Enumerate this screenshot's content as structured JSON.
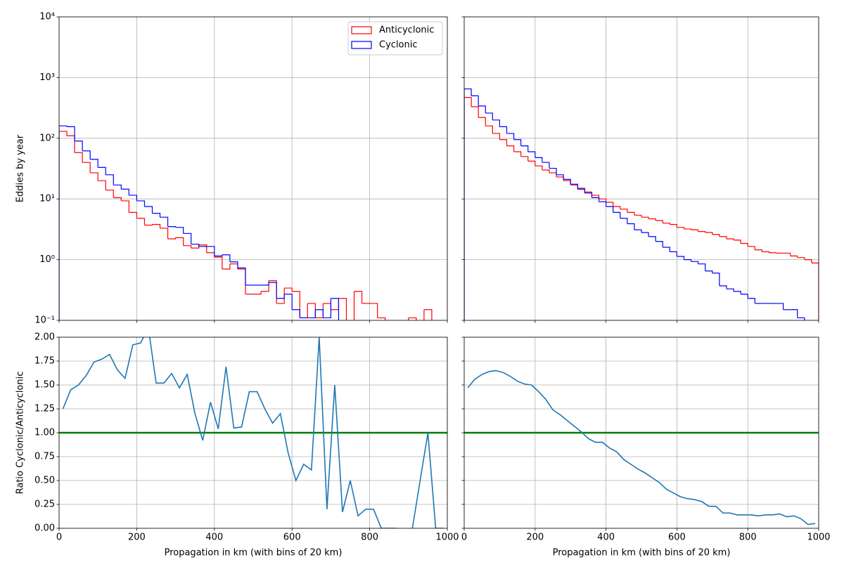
{
  "chart_data": [
    {
      "type": "histogram",
      "yscale": "log",
      "grid": true,
      "xtick_labels": false,
      "ytick_labels": true,
      "ylabel": "Eddies by year",
      "legend": "upper right",
      "bins": [
        0,
        20,
        40,
        60,
        80,
        100,
        120,
        140,
        160,
        180,
        200,
        220,
        240,
        260,
        280,
        300,
        320,
        340,
        360,
        380,
        400,
        420,
        440,
        460,
        480,
        500,
        520,
        540,
        560,
        580,
        600,
        620,
        640,
        660,
        680,
        700,
        720,
        740,
        760,
        780,
        800,
        820,
        840,
        860,
        880,
        900,
        920,
        940,
        960,
        980,
        1000
      ],
      "xlim": [
        0,
        1000
      ],
      "xticks": [
        0,
        200,
        400,
        600,
        800,
        1000
      ],
      "ylim": [
        0.1,
        10000
      ],
      "yticks": [
        {
          "value": 0.1,
          "label": "10⁻¹"
        },
        {
          "value": 1,
          "label": "10⁰"
        },
        {
          "value": 10,
          "label": "10¹"
        },
        {
          "value": 100,
          "label": "10²"
        },
        {
          "value": 1000,
          "label": "10³"
        },
        {
          "value": 10000,
          "label": "10⁴"
        }
      ],
      "series": [
        {
          "name": "Anticyclonic",
          "color": "#ff0000",
          "values": [
            130,
            110,
            58,
            40,
            27,
            20,
            14,
            10.5,
            9.3,
            6,
            4.8,
            3.7,
            3.8,
            3.3,
            2.2,
            2.3,
            1.7,
            1.55,
            1.75,
            1.3,
            1.1,
            0.7,
            0.85,
            0.7,
            0.27,
            0.27,
            0.3,
            0.45,
            0.19,
            0.34,
            0.3,
            0.11,
            0.19,
            0.11,
            0.19,
            0.15,
            0.23,
            0,
            0.3,
            0.19,
            0.19,
            0.11,
            0,
            0,
            0,
            0.11,
            0,
            0.15,
            0,
            0
          ]
        },
        {
          "name": "Cyclonic",
          "color": "#0000ff",
          "values": [
            160,
            155,
            90,
            62,
            45,
            33,
            25,
            17,
            14.5,
            11.5,
            9.3,
            7.5,
            5.8,
            5,
            3.5,
            3.4,
            2.7,
            1.8,
            1.65,
            1.65,
            1.15,
            1.2,
            0.92,
            0.73,
            0.38,
            0.38,
            0.38,
            0.42,
            0.23,
            0.27,
            0.15,
            0.11,
            0.11,
            0.15,
            0.11,
            0.23,
            0,
            0,
            0,
            0,
            0,
            0,
            0,
            0,
            0,
            0,
            0,
            0,
            0,
            0
          ]
        }
      ]
    },
    {
      "type": "histogram",
      "yscale": "log",
      "grid": true,
      "xtick_labels": false,
      "ytick_labels": false,
      "bins": [
        0,
        20,
        40,
        60,
        80,
        100,
        120,
        140,
        160,
        180,
        200,
        220,
        240,
        260,
        280,
        300,
        320,
        340,
        360,
        380,
        400,
        420,
        440,
        460,
        480,
        500,
        520,
        540,
        560,
        580,
        600,
        620,
        640,
        660,
        680,
        700,
        720,
        740,
        760,
        780,
        800,
        820,
        840,
        860,
        880,
        900,
        920,
        940,
        960,
        980,
        1000
      ],
      "xlim": [
        0,
        1000
      ],
      "xticks": [
        0,
        200,
        400,
        600,
        800,
        1000
      ],
      "ylim": [
        0.1,
        10000
      ],
      "yticks": [
        {
          "value": 0.1,
          "label": "10⁻¹"
        },
        {
          "value": 1,
          "label": "10⁰"
        },
        {
          "value": 10,
          "label": "10¹"
        },
        {
          "value": 100,
          "label": "10²"
        },
        {
          "value": 1000,
          "label": "10³"
        },
        {
          "value": 10000,
          "label": "10⁴"
        }
      ],
      "series": [
        {
          "name": "Anticyclonic",
          "color": "#ff0000",
          "values": [
            470,
            330,
            220,
            160,
            120,
            95,
            75,
            60,
            50,
            42,
            35,
            30,
            27,
            23,
            20,
            17,
            15,
            13,
            11.5,
            10,
            8.8,
            7.5,
            6.8,
            6,
            5.4,
            5,
            4.7,
            4.4,
            4,
            3.8,
            3.4,
            3.2,
            3.1,
            2.9,
            2.8,
            2.6,
            2.4,
            2.2,
            2.1,
            1.85,
            1.65,
            1.45,
            1.35,
            1.3,
            1.28,
            1.28,
            1.15,
            1.08,
            1.0,
            0.88
          ]
        },
        {
          "name": "Cyclonic",
          "color": "#0000ff",
          "values": [
            650,
            500,
            340,
            260,
            200,
            155,
            120,
            95,
            75,
            60,
            48,
            40,
            32,
            25,
            21,
            17.5,
            14.5,
            12.5,
            10.5,
            9,
            7.5,
            6,
            4.8,
            3.9,
            3.1,
            2.8,
            2.4,
            2.0,
            1.6,
            1.35,
            1.13,
            1.0,
            0.93,
            0.85,
            0.65,
            0.6,
            0.37,
            0.33,
            0.3,
            0.27,
            0.23,
            0.19,
            0.19,
            0.19,
            0.19,
            0.15,
            0.15,
            0.11,
            0,
            0
          ]
        }
      ]
    },
    {
      "type": "line",
      "grid": true,
      "xtick_labels": true,
      "ytick_labels": true,
      "ylabel": "Ratio Cyclonic/Anticyclonic",
      "xlabel": "Propagation in km (with bins of 20 km)",
      "x": [
        10,
        30,
        50,
        70,
        90,
        110,
        130,
        150,
        170,
        190,
        210,
        230,
        250,
        270,
        290,
        310,
        330,
        350,
        370,
        390,
        410,
        430,
        450,
        470,
        490,
        510,
        530,
        550,
        570,
        590,
        610,
        630,
        650,
        670,
        690,
        710,
        730,
        750,
        770,
        790,
        810,
        830,
        850,
        870,
        890,
        910,
        930,
        950,
        970,
        990
      ],
      "values": [
        1.25,
        1.45,
        1.5,
        1.6,
        1.74,
        1.77,
        1.82,
        1.66,
        1.57,
        1.92,
        1.94,
        2.1,
        1.52,
        1.52,
        1.62,
        1.47,
        1.61,
        1.2,
        0.92,
        1.32,
        1.04,
        1.69,
        1.05,
        1.06,
        1.43,
        1.43,
        1.25,
        1.1,
        1.2,
        0.79,
        0.5,
        0.67,
        0.61,
        2.0,
        0.2,
        1.5,
        0.17,
        0.5,
        0.13,
        0.2,
        0.2,
        0,
        0,
        0,
        null,
        0,
        0.5,
        1.0,
        0,
        0
      ],
      "color": "#1f77b4",
      "hline": {
        "value": 1,
        "color": "#008000"
      },
      "xlim": [
        0,
        1000
      ],
      "xticks": [
        0,
        200,
        400,
        600,
        800,
        1000
      ],
      "ylim": [
        0,
        2
      ],
      "yticks": [
        {
          "value": 0,
          "label": "0.00"
        },
        {
          "value": 0.25,
          "label": "0.25"
        },
        {
          "value": 0.5,
          "label": "0.50"
        },
        {
          "value": 0.75,
          "label": "0.75"
        },
        {
          "value": 1,
          "label": "1.00"
        },
        {
          "value": 1.25,
          "label": "1.25"
        },
        {
          "value": 1.5,
          "label": "1.50"
        },
        {
          "value": 1.75,
          "label": "1.75"
        },
        {
          "value": 2,
          "label": "2.00"
        }
      ]
    },
    {
      "type": "line",
      "grid": true,
      "xtick_labels": true,
      "ytick_labels": false,
      "xlabel": "Propagation in km (with bins of 20 km)",
      "x": [
        10,
        30,
        50,
        70,
        90,
        110,
        130,
        150,
        170,
        190,
        210,
        230,
        250,
        270,
        290,
        310,
        330,
        350,
        370,
        390,
        410,
        430,
        450,
        470,
        490,
        510,
        530,
        550,
        570,
        590,
        610,
        630,
        650,
        670,
        690,
        710,
        730,
        750,
        770,
        790,
        810,
        830,
        850,
        870,
        890,
        910,
        930,
        950,
        970,
        990
      ],
      "values": [
        1.47,
        1.56,
        1.61,
        1.64,
        1.65,
        1.63,
        1.59,
        1.54,
        1.51,
        1.5,
        1.43,
        1.35,
        1.24,
        1.19,
        1.13,
        1.07,
        1.01,
        0.94,
        0.9,
        0.9,
        0.84,
        0.8,
        0.72,
        0.67,
        0.62,
        0.58,
        0.53,
        0.48,
        0.41,
        0.37,
        0.33,
        0.31,
        0.3,
        0.28,
        0.23,
        0.23,
        0.16,
        0.16,
        0.14,
        0.14,
        0.14,
        0.13,
        0.14,
        0.14,
        0.15,
        0.12,
        0.13,
        0.1,
        0.04,
        0.05
      ],
      "color": "#1f77b4",
      "hline": {
        "value": 1,
        "color": "#008000"
      },
      "xlim": [
        0,
        1000
      ],
      "xticks": [
        0,
        200,
        400,
        600,
        800,
        1000
      ],
      "ylim": [
        0,
        2
      ],
      "yticks": [
        {
          "value": 0,
          "label": "0.00"
        },
        {
          "value": 0.25,
          "label": "0.25"
        },
        {
          "value": 0.5,
          "label": "0.50"
        },
        {
          "value": 0.75,
          "label": "0.75"
        },
        {
          "value": 1,
          "label": "1.00"
        },
        {
          "value": 1.25,
          "label": "1.25"
        },
        {
          "value": 1.5,
          "label": "1.50"
        },
        {
          "value": 1.75,
          "label": "1.75"
        },
        {
          "value": 2,
          "label": "2.00"
        }
      ]
    }
  ]
}
